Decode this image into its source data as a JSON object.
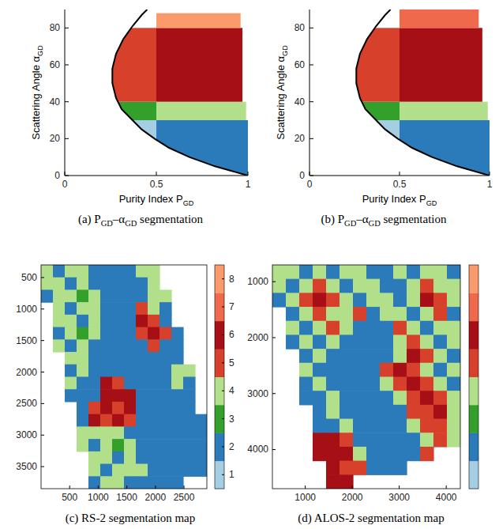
{
  "chart_data": [
    {
      "type": "region",
      "x_label": [
        "Purity Index P",
        "GD"
      ],
      "y_label": [
        "Scattering Angle α",
        "GD"
      ],
      "caption": [
        "(a) P",
        "GD",
        "–α",
        "GD",
        " segmentation"
      ],
      "xlim": [
        0,
        1
      ],
      "xticks": [
        0,
        0.5,
        1
      ],
      "ylim": [
        0,
        90
      ],
      "yticks": [
        0,
        20,
        40,
        60,
        80
      ],
      "colors": [
        "#a6cee3",
        "#2b7bba",
        "#34a02c",
        "#b2df8a",
        "#d7412b",
        "#a50f15",
        "#ef6a4c",
        "#fb9a6a"
      ],
      "regions": [
        {
          "class": 1,
          "x": [
            0,
            0.5
          ],
          "y": [
            0,
            30
          ]
        },
        {
          "class": 2,
          "x": [
            0.5,
            1
          ],
          "y": [
            0,
            30
          ]
        },
        {
          "class": 3,
          "x": [
            0,
            0.5
          ],
          "y": [
            30,
            40
          ]
        },
        {
          "class": 4,
          "x": [
            0.5,
            0.99
          ],
          "y": [
            30,
            40
          ]
        },
        {
          "class": 5,
          "x": [
            0,
            0.5
          ],
          "y": [
            40,
            80
          ]
        },
        {
          "class": 6,
          "x": [
            0.5,
            0.97
          ],
          "y": [
            40,
            80
          ]
        },
        {
          "class": 8,
          "x": [
            0.5,
            0.96
          ],
          "y": [
            80,
            88
          ]
        }
      ],
      "curve": {
        "x": [
          1,
          0.82,
          0.68,
          0.57,
          0.49,
          0.42,
          0.37,
          0.31,
          0.28,
          0.26,
          0.26,
          0.28,
          0.32,
          0.37,
          0.42,
          0.45
        ],
        "y": [
          0,
          5,
          10,
          15,
          20,
          25,
          30,
          36,
          42,
          50,
          58,
          66,
          74,
          81,
          87,
          90
        ]
      }
    },
    {
      "type": "region",
      "x_label": [
        "Purity Index P",
        "GD"
      ],
      "y_label": [
        "Scattering Angle α",
        "GD"
      ],
      "caption": [
        "(b) P",
        "GD",
        "–α",
        "GD",
        " segmentation"
      ],
      "xlim": [
        0,
        1
      ],
      "xticks": [
        0,
        0.5,
        1
      ],
      "ylim": [
        0,
        90
      ],
      "yticks": [
        0,
        20,
        40,
        60,
        80
      ],
      "colors": [
        "#a6cee3",
        "#2b7bba",
        "#34a02c",
        "#b2df8a",
        "#d7412b",
        "#a50f15",
        "#ef6a4c",
        "#fb9a6a"
      ],
      "regions": [
        {
          "class": 1,
          "x": [
            0,
            0.5
          ],
          "y": [
            0,
            30
          ]
        },
        {
          "class": 2,
          "x": [
            0.5,
            1
          ],
          "y": [
            0,
            30
          ]
        },
        {
          "class": 3,
          "x": [
            0,
            0.5
          ],
          "y": [
            30,
            40
          ]
        },
        {
          "class": 4,
          "x": [
            0.5,
            0.99
          ],
          "y": [
            30,
            40
          ]
        },
        {
          "class": 5,
          "x": [
            0,
            0.5
          ],
          "y": [
            40,
            80
          ]
        },
        {
          "class": 6,
          "x": [
            0.5,
            0.96
          ],
          "y": [
            40,
            80
          ]
        },
        {
          "class": 7,
          "x": [
            0.5,
            0.94
          ],
          "y": [
            80,
            90
          ]
        }
      ],
      "curve": {
        "x": [
          1,
          0.82,
          0.68,
          0.57,
          0.49,
          0.42,
          0.37,
          0.31,
          0.28,
          0.26,
          0.26,
          0.28,
          0.32,
          0.37,
          0.42,
          0.45
        ],
        "y": [
          0,
          5,
          10,
          15,
          20,
          25,
          30,
          36,
          42,
          50,
          58,
          66,
          74,
          81,
          87,
          90
        ]
      }
    },
    {
      "type": "heatmap",
      "caption": [
        "(c) RS-2 segmentation map"
      ],
      "xlim": [
        0,
        2900
      ],
      "xticks": [
        500,
        1000,
        1500,
        2000,
        2500
      ],
      "ylim": [
        300,
        3850
      ],
      "yticks": [
        500,
        1000,
        1500,
        2000,
        2500,
        3000,
        3500
      ],
      "colors": [
        "#a6cee3",
        "#2b7bba",
        "#34a02c",
        "#b2df8a",
        "#d7412b",
        "#a50f15",
        "#ef6a4c",
        "#fb9a6a"
      ],
      "color_range": [
        0.5,
        8.5
      ],
      "color_ticks": [
        1,
        2,
        3,
        4,
        5,
        6,
        7,
        8
      ],
      "cells": [
        [
          4,
          2,
          4,
          4,
          2,
          2,
          2,
          2,
          4,
          4,
          null,
          null,
          null,
          null
        ],
        [
          4,
          4,
          2,
          4,
          2,
          2,
          2,
          2,
          2,
          4,
          null,
          null,
          null,
          null
        ],
        [
          2,
          4,
          4,
          3,
          4,
          2,
          2,
          2,
          2,
          4,
          4,
          null,
          null,
          null
        ],
        [
          null,
          4,
          2,
          4,
          4,
          2,
          2,
          2,
          5,
          4,
          2,
          null,
          null,
          null
        ],
        [
          null,
          4,
          4,
          2,
          4,
          2,
          2,
          2,
          6,
          5,
          2,
          null,
          null,
          null
        ],
        [
          null,
          2,
          4,
          3,
          4,
          2,
          2,
          2,
          5,
          6,
          5,
          2,
          null,
          null
        ],
        [
          null,
          4,
          2,
          4,
          2,
          2,
          2,
          2,
          2,
          5,
          2,
          2,
          null,
          null
        ],
        [
          null,
          null,
          4,
          4,
          2,
          2,
          2,
          2,
          2,
          2,
          2,
          2,
          null,
          null
        ],
        [
          null,
          null,
          2,
          4,
          2,
          2,
          2,
          2,
          2,
          2,
          2,
          4,
          4,
          null
        ],
        [
          null,
          null,
          4,
          2,
          2,
          6,
          5,
          2,
          2,
          2,
          2,
          4,
          2,
          null
        ],
        [
          null,
          null,
          2,
          2,
          2,
          6,
          6,
          6,
          2,
          2,
          2,
          2,
          2,
          null
        ],
        [
          null,
          null,
          null,
          2,
          5,
          6,
          5,
          6,
          2,
          2,
          2,
          2,
          2,
          null
        ],
        [
          null,
          null,
          null,
          2,
          6,
          5,
          6,
          5,
          2,
          2,
          2,
          2,
          2,
          2
        ],
        [
          null,
          null,
          null,
          4,
          4,
          4,
          4,
          2,
          2,
          2,
          2,
          2,
          2,
          2
        ],
        [
          null,
          null,
          null,
          4,
          2,
          4,
          3,
          4,
          2,
          2,
          2,
          2,
          2,
          2
        ],
        [
          null,
          null,
          null,
          null,
          4,
          4,
          2,
          4,
          2,
          2,
          2,
          2,
          2,
          2
        ],
        [
          null,
          null,
          null,
          null,
          4,
          2,
          4,
          4,
          4,
          2,
          2,
          2,
          2,
          2
        ],
        [
          null,
          null,
          null,
          null,
          2,
          4,
          4,
          2,
          2,
          2,
          2,
          2,
          null,
          null
        ]
      ]
    },
    {
      "type": "heatmap",
      "caption": [
        "(d) ALOS-2 segmentation map"
      ],
      "xlim": [
        300,
        4300
      ],
      "xticks": [
        1000,
        2000,
        3000,
        4000
      ],
      "ylim": [
        700,
        4700
      ],
      "yticks": [
        1000,
        2000,
        3000,
        4000
      ],
      "colors": [
        "#a6cee3",
        "#2b7bba",
        "#34a02c",
        "#b2df8a",
        "#d7412b",
        "#a50f15",
        "#ef6a4c",
        "#fb9a6a"
      ],
      "color_range": [
        0.5,
        8.5
      ],
      "cells": [
        [
          4,
          4,
          2,
          4,
          2,
          4,
          4,
          2,
          2,
          4,
          2,
          4,
          4,
          2
        ],
        [
          4,
          2,
          4,
          5,
          4,
          2,
          4,
          4,
          2,
          2,
          4,
          5,
          4,
          4
        ],
        [
          2,
          4,
          5,
          6,
          5,
          4,
          2,
          4,
          4,
          2,
          4,
          6,
          5,
          4
        ],
        [
          null,
          2,
          4,
          5,
          4,
          4,
          5,
          2,
          4,
          4,
          2,
          4,
          5,
          2
        ],
        [
          null,
          4,
          2,
          4,
          5,
          4,
          2,
          2,
          2,
          5,
          4,
          2,
          4,
          4
        ],
        [
          null,
          2,
          4,
          2,
          4,
          2,
          2,
          2,
          2,
          4,
          5,
          4,
          2,
          4
        ],
        [
          null,
          null,
          2,
          4,
          2,
          2,
          2,
          2,
          2,
          4,
          6,
          5,
          4,
          2
        ],
        [
          null,
          null,
          4,
          2,
          2,
          2,
          2,
          2,
          5,
          6,
          5,
          4,
          2,
          4
        ],
        [
          null,
          null,
          2,
          4,
          2,
          2,
          2,
          2,
          4,
          5,
          6,
          5,
          4,
          2
        ],
        [
          null,
          null,
          2,
          2,
          4,
          2,
          2,
          2,
          2,
          4,
          5,
          6,
          5,
          4
        ],
        [
          null,
          null,
          null,
          2,
          4,
          2,
          2,
          2,
          2,
          2,
          5,
          5,
          6,
          4
        ],
        [
          null,
          null,
          null,
          2,
          2,
          4,
          2,
          2,
          2,
          2,
          4,
          5,
          5,
          4
        ],
        [
          null,
          null,
          null,
          6,
          6,
          5,
          2,
          2,
          2,
          2,
          2,
          4,
          5,
          4
        ],
        [
          null,
          null,
          null,
          6,
          6,
          6,
          4,
          2,
          2,
          2,
          2,
          5,
          null,
          null
        ],
        [
          null,
          null,
          null,
          null,
          6,
          5,
          5,
          2,
          2,
          2,
          null,
          null,
          null,
          null
        ],
        [
          null,
          null,
          null,
          null,
          6,
          6,
          null,
          null,
          null,
          null,
          null,
          null,
          null,
          null
        ]
      ]
    }
  ]
}
